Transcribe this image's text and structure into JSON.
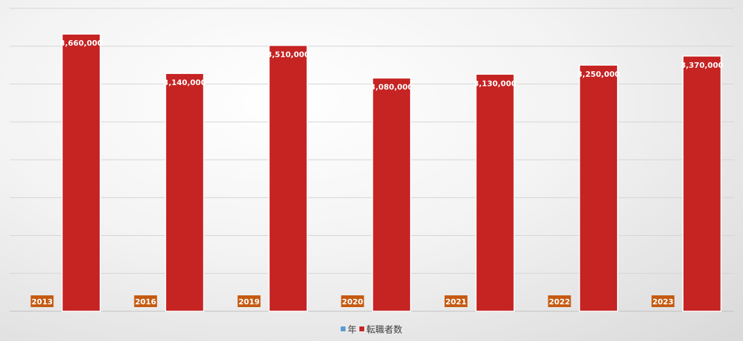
{
  "chart_data": {
    "type": "bar",
    "categories": [
      "2013",
      "2016",
      "2019",
      "2020",
      "2021",
      "2022",
      "2023"
    ],
    "series": [
      {
        "name": "年",
        "color": "#5b9bd5",
        "values": [
          2013,
          2016,
          2019,
          2020,
          2021,
          2022,
          2023
        ]
      },
      {
        "name": "転職者数",
        "color": "#c62323",
        "values": [
          3660000,
          3140000,
          3510000,
          3080000,
          3130000,
          3250000,
          3370000
        ],
        "labels": [
          "3,660,000",
          "3,140,000",
          "3,510,000",
          "3,080,000",
          "3,130,000",
          "3,250,000",
          "3,370,000"
        ]
      }
    ],
    "ylim": [
      0,
      4000000
    ],
    "grid": true,
    "legend_position": "bottom",
    "category_label_color": "#c55a11",
    "title": "",
    "xlabel": "",
    "ylabel": ""
  }
}
